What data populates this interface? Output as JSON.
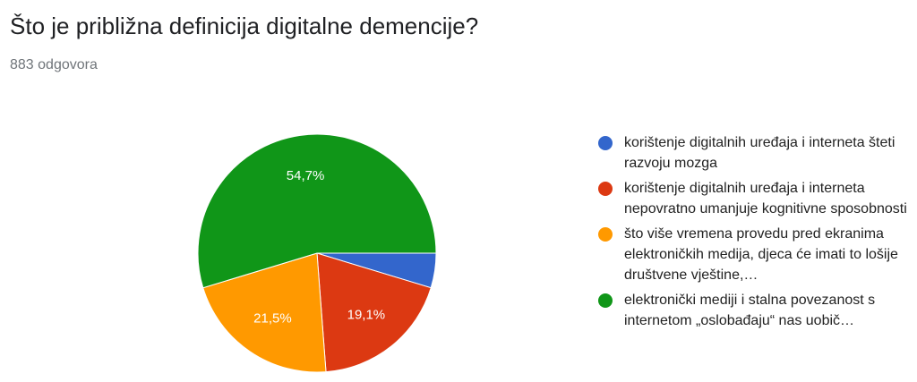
{
  "title": "Što je približna definicija digitalne demencije?",
  "responses": "883 odgovora",
  "chart_data": {
    "type": "pie",
    "title": "Što je približna definicija digitalne demencije?",
    "legend_position": "right",
    "slices": [
      {
        "label": "korištenje digitalnih uređaja i interneta šteti razvoju mozga",
        "value": 4.7,
        "display": "",
        "color": "#3366cc"
      },
      {
        "label": "korištenje digitalnih uređaja i interneta nepovratno umanjuje kognitivne sposobnosti",
        "value": 19.1,
        "display": "19,1%",
        "color": "#dc3912"
      },
      {
        "label": "što više vremena provedu pred ekranima elektroničkih medija, djeca će imati to lošije društvene vještine,…",
        "value": 21.5,
        "display": "21,5%",
        "color": "#ff9900"
      },
      {
        "label": "elektronički mediji i stalna povezanost s internetom „oslobađaju“ nas uobič…",
        "value": 54.7,
        "display": "54,7%",
        "color": "#109618"
      }
    ]
  }
}
